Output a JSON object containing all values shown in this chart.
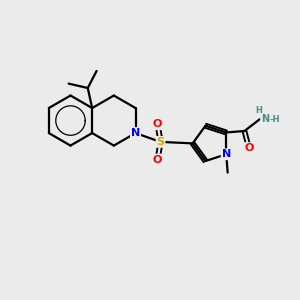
{
  "background_color": "#ebebeb",
  "atom_colors": {
    "C": "#000000",
    "N": "#0000ff",
    "O": "#ff0000",
    "S": "#ccaa00",
    "H": "#4a8a8a"
  },
  "bond_color": "#000000",
  "bond_width": 1.6,
  "font_size": 8
}
